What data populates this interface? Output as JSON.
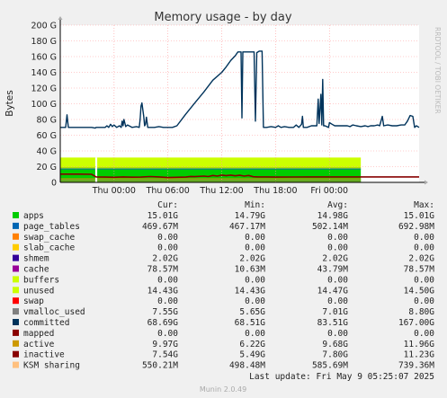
{
  "chart_data": {
    "type": "area",
    "title": "Memory usage - by day",
    "ylabel": "Bytes",
    "ylim": [
      0,
      200
    ],
    "y_unit": "G",
    "y_ticks": [
      "0",
      "20 G",
      "40 G",
      "60 G",
      "80 G",
      "100 G",
      "120 G",
      "140 G",
      "160 G",
      "180 G",
      "200 G"
    ],
    "x_ticks": [
      {
        "hour": 6,
        "label": "Thu 00:00"
      },
      {
        "hour": 12,
        "label": "Thu 06:00"
      },
      {
        "hour": 18,
        "label": "Thu 12:00"
      },
      {
        "hour": 24,
        "label": "Thu 18:00"
      },
      {
        "hour": 30,
        "label": "Fri 00:00"
      }
    ],
    "x_range_hours": [
      0,
      33.5
    ],
    "grid": true,
    "stack_top": 31.6,
    "unused_band": [
      18.6,
      31.6
    ],
    "green_band": [
      4.7,
      17.1
    ],
    "committed": {
      "name": "committed",
      "color": "#00335b",
      "points": [
        [
          0,
          70
        ],
        [
          0.6,
          70
        ],
        [
          0.75,
          86
        ],
        [
          0.9,
          70
        ],
        [
          2,
          70
        ],
        [
          3.5,
          70
        ],
        [
          3.9,
          69
        ],
        [
          4.0,
          70
        ],
        [
          5,
          70
        ],
        [
          5.2,
          72
        ],
        [
          5.4,
          70
        ],
        [
          5.6,
          74
        ],
        [
          5.8,
          71
        ],
        [
          6,
          73
        ],
        [
          6.3,
          70
        ],
        [
          6.6,
          72
        ],
        [
          6.8,
          70
        ],
        [
          6.9,
          78
        ],
        [
          7.0,
          72
        ],
        [
          7.1,
          80
        ],
        [
          7.3,
          71
        ],
        [
          7.5,
          73
        ],
        [
          8,
          70
        ],
        [
          8.5,
          71
        ],
        [
          8.8,
          70
        ],
        [
          8.9,
          80
        ],
        [
          9.0,
          97
        ],
        [
          9.1,
          101
        ],
        [
          9.3,
          84
        ],
        [
          9.4,
          72
        ],
        [
          9.5,
          74
        ],
        [
          9.6,
          83
        ],
        [
          9.75,
          70
        ],
        [
          10.5,
          70
        ],
        [
          11,
          71
        ],
        [
          11.5,
          70
        ],
        [
          12,
          70
        ],
        [
          12.5,
          70
        ],
        [
          13,
          72
        ],
        [
          14,
          87
        ],
        [
          15,
          101
        ],
        [
          16,
          115
        ],
        [
          17,
          130
        ],
        [
          18,
          140
        ],
        [
          18.5,
          147
        ],
        [
          19,
          155
        ],
        [
          19.5,
          161
        ],
        [
          19.8,
          166
        ],
        [
          20.0,
          166
        ],
        [
          20.15,
          166
        ],
        [
          20.25,
          82
        ],
        [
          20.35,
          166
        ],
        [
          21,
          166
        ],
        [
          21.6,
          166
        ],
        [
          21.75,
          78
        ],
        [
          21.9,
          165
        ],
        [
          22.2,
          167
        ],
        [
          22.5,
          167
        ],
        [
          22.65,
          70
        ],
        [
          23,
          70
        ],
        [
          23.5,
          71
        ],
        [
          24,
          70
        ],
        [
          24.3,
          72
        ],
        [
          24.6,
          70
        ],
        [
          25,
          71
        ],
        [
          25.5,
          70
        ],
        [
          26,
          70
        ],
        [
          26.3,
          73
        ],
        [
          26.6,
          70
        ],
        [
          26.9,
          74
        ],
        [
          27.0,
          84
        ],
        [
          27.1,
          70
        ],
        [
          27.5,
          70
        ],
        [
          28,
          72
        ],
        [
          28.6,
          72
        ],
        [
          28.75,
          106
        ],
        [
          28.85,
          75
        ],
        [
          29.05,
          112
        ],
        [
          29.15,
          73
        ],
        [
          29.25,
          131
        ],
        [
          29.35,
          72
        ],
        [
          29.5,
          72
        ],
        [
          29.9,
          70
        ],
        [
          30.0,
          76
        ],
        [
          30.3,
          74
        ],
        [
          30.6,
          72
        ],
        [
          31,
          72
        ],
        [
          31.5,
          72
        ],
        [
          32,
          72
        ],
        [
          32.3,
          71
        ],
        [
          32.6,
          73
        ],
        [
          33,
          72
        ],
        [
          33.5,
          71
        ],
        [
          34,
          72
        ],
        [
          34.3,
          71
        ],
        [
          34.6,
          72
        ],
        [
          35,
          72
        ],
        [
          35.4,
          73
        ],
        [
          35.6,
          72
        ],
        [
          35.9,
          84
        ],
        [
          36.05,
          72
        ],
        [
          36.5,
          73
        ],
        [
          37,
          72
        ],
        [
          37.5,
          72
        ],
        [
          38,
          73
        ],
        [
          38.4,
          73
        ],
        [
          38.7,
          78
        ],
        [
          39.0,
          85
        ],
        [
          39.3,
          84
        ],
        [
          39.5,
          70
        ],
        [
          39.7,
          72
        ],
        [
          40,
          70
        ]
      ]
    },
    "inactive_line": {
      "name": "inactive",
      "color": "#880000",
      "points": [
        [
          0,
          10.5
        ],
        [
          2,
          10.5
        ],
        [
          3.5,
          10.3
        ],
        [
          4,
          7
        ],
        [
          5,
          6.8
        ],
        [
          6,
          6.5
        ],
        [
          7,
          7
        ],
        [
          8,
          6.6
        ],
        [
          9,
          6.8
        ],
        [
          10,
          7.4
        ],
        [
          11,
          7
        ],
        [
          12,
          6.2
        ],
        [
          13,
          6.5
        ],
        [
          14,
          6.8
        ],
        [
          14.5,
          7.5
        ],
        [
          15,
          7.3
        ],
        [
          16,
          8
        ],
        [
          16.5,
          7.4
        ],
        [
          17,
          8.8
        ],
        [
          17.5,
          8
        ],
        [
          18,
          9.2
        ],
        [
          18.5,
          8.5
        ],
        [
          19,
          9.3
        ],
        [
          19.5,
          8.4
        ],
        [
          20,
          9
        ],
        [
          20.5,
          8
        ],
        [
          21,
          8.8
        ],
        [
          21.5,
          7.2
        ],
        [
          22,
          7
        ],
        [
          23,
          7
        ],
        [
          24,
          6.8
        ],
        [
          26,
          6.9
        ],
        [
          28,
          7
        ],
        [
          30,
          7
        ],
        [
          32,
          7
        ],
        [
          34,
          7
        ],
        [
          36,
          7
        ],
        [
          38,
          7
        ],
        [
          40,
          7
        ]
      ]
    },
    "gap_hour": 4.0,
    "legend": {
      "headers": {
        "cur": "Cur:",
        "min": "Min:",
        "avg": "Avg:",
        "max": "Max:"
      },
      "rows": [
        {
          "name": "apps",
          "color": "#00cc00",
          "cur": "15.01G",
          "min": "14.79G",
          "avg": "14.98G",
          "max": "15.01G"
        },
        {
          "name": "page_tables",
          "color": "#0066b3",
          "cur": "469.67M",
          "min": "467.17M",
          "avg": "502.14M",
          "max": "692.98M"
        },
        {
          "name": "swap_cache",
          "color": "#ff8000",
          "cur": "0.00",
          "min": "0.00",
          "avg": "0.00",
          "max": "0.00"
        },
        {
          "name": "slab_cache",
          "color": "#ffcc00",
          "cur": "0.00",
          "min": "0.00",
          "avg": "0.00",
          "max": "0.00"
        },
        {
          "name": "shmem",
          "color": "#330099",
          "cur": "2.02G",
          "min": "2.02G",
          "avg": "2.02G",
          "max": "2.02G"
        },
        {
          "name": "cache",
          "color": "#990099",
          "cur": "78.57M",
          "min": "10.63M",
          "avg": "43.79M",
          "max": "78.57M"
        },
        {
          "name": "buffers",
          "color": "#ccff00",
          "cur": "0.00",
          "min": "0.00",
          "avg": "0.00",
          "max": "0.00"
        },
        {
          "name": "unused",
          "color": "#ccff00",
          "cur": "14.43G",
          "min": "14.43G",
          "avg": "14.47G",
          "max": "14.50G"
        },
        {
          "name": "swap",
          "color": "#ff0000",
          "cur": "0.00",
          "min": "0.00",
          "avg": "0.00",
          "max": "0.00"
        },
        {
          "name": "vmalloc_used",
          "color": "#808080",
          "cur": "7.55G",
          "min": "5.65G",
          "avg": "7.01G",
          "max": "8.80G"
        },
        {
          "name": "committed",
          "color": "#00335b",
          "cur": "68.69G",
          "min": "68.51G",
          "avg": "83.51G",
          "max": "167.00G"
        },
        {
          "name": "mapped",
          "color": "#8a0000",
          "cur": "0.00",
          "min": "0.00",
          "avg": "0.00",
          "max": "0.00"
        },
        {
          "name": "active",
          "color": "#cc9900",
          "cur": "9.97G",
          "min": "6.22G",
          "avg": "9.68G",
          "max": "11.96G"
        },
        {
          "name": "inactive",
          "color": "#880000",
          "cur": "7.54G",
          "min": "5.49G",
          "avg": "7.80G",
          "max": "11.23G"
        },
        {
          "name": "KSM sharing",
          "color": "#ffc07f",
          "cur": "550.21M",
          "min": "498.48M",
          "avg": "585.69M",
          "max": "739.36M"
        }
      ]
    },
    "last_update": "Last update:  Fri May  9 05:25:07 2025",
    "side_label": "RRDTOOL / TOBI OETIKER",
    "footer": "Munin 2.0.49"
  }
}
